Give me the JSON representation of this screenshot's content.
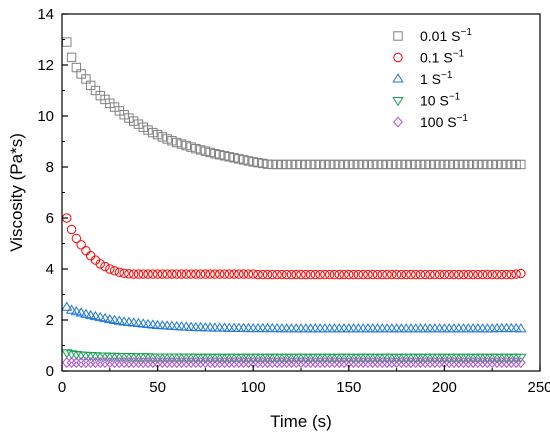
{
  "chart_data": {
    "type": "scatter",
    "xlabel": "Time (s)",
    "ylabel": "Viscosity (Pa*s)",
    "xlim": [
      0,
      250
    ],
    "ylim": [
      0,
      14
    ],
    "x_ticks": [
      0,
      50,
      100,
      150,
      200,
      250
    ],
    "y_ticks": [
      0,
      2,
      4,
      6,
      8,
      10,
      12,
      14
    ],
    "grid": false,
    "legend_placement": "top-right",
    "x_start": 2.5,
    "x_step": 2.5,
    "x_end": 240,
    "series": [
      {
        "name": "0.01 S",
        "superscript": "−1",
        "marker": "square",
        "color": "#808080",
        "values": [
          12.9,
          12.3,
          11.9,
          11.65,
          11.45,
          11.2,
          11.0,
          10.8,
          10.65,
          10.5,
          10.35,
          10.2,
          10.05,
          9.92,
          9.8,
          9.68,
          9.56,
          9.45,
          9.35,
          9.27,
          9.18,
          9.1,
          9.03,
          8.96,
          8.9,
          8.84,
          8.78,
          8.72,
          8.67,
          8.62,
          8.57,
          8.52,
          8.48,
          8.44,
          8.4,
          8.36,
          8.32,
          8.28,
          8.24,
          8.2,
          8.17,
          8.14,
          8.11,
          8.1,
          8.1,
          8.1,
          8.1,
          8.1,
          8.1,
          8.1,
          8.1,
          8.1,
          8.1,
          8.1,
          8.1,
          8.1,
          8.1,
          8.1,
          8.1,
          8.1,
          8.1,
          8.1,
          8.1,
          8.1,
          8.1,
          8.1,
          8.1,
          8.1,
          8.1,
          8.1,
          8.1,
          8.1,
          8.1,
          8.1,
          8.1,
          8.1,
          8.1,
          8.1,
          8.1,
          8.1,
          8.1,
          8.1,
          8.1,
          8.1,
          8.1,
          8.1,
          8.1,
          8.1,
          8.1,
          8.1,
          8.1,
          8.1,
          8.1,
          8.1,
          8.1,
          8.1
        ]
      },
      {
        "name": "0.1 S",
        "superscript": "−1",
        "marker": "circle",
        "color": "#ff0000",
        "values": [
          6.0,
          5.55,
          5.2,
          4.95,
          4.72,
          4.52,
          4.35,
          4.2,
          4.1,
          4.0,
          3.93,
          3.87,
          3.83,
          3.81,
          3.8,
          3.8,
          3.8,
          3.8,
          3.8,
          3.8,
          3.8,
          3.8,
          3.8,
          3.8,
          3.8,
          3.8,
          3.8,
          3.8,
          3.8,
          3.8,
          3.8,
          3.8,
          3.8,
          3.8,
          3.8,
          3.8,
          3.8,
          3.8,
          3.8,
          3.8,
          3.78,
          3.78,
          3.78,
          3.78,
          3.78,
          3.78,
          3.78,
          3.78,
          3.78,
          3.78,
          3.78,
          3.78,
          3.78,
          3.78,
          3.78,
          3.78,
          3.78,
          3.78,
          3.78,
          3.78,
          3.78,
          3.78,
          3.78,
          3.78,
          3.78,
          3.78,
          3.78,
          3.78,
          3.78,
          3.78,
          3.78,
          3.78,
          3.78,
          3.78,
          3.78,
          3.78,
          3.78,
          3.78,
          3.78,
          3.78,
          3.78,
          3.78,
          3.78,
          3.78,
          3.78,
          3.78,
          3.78,
          3.78,
          3.78,
          3.78,
          3.78,
          3.78,
          3.78,
          3.78,
          3.8,
          3.82
        ]
      },
      {
        "name": "1 S",
        "superscript": "−1",
        "marker": "triangle-up",
        "color": "#1f77d4",
        "values": [
          2.5,
          2.38,
          2.32,
          2.27,
          2.22,
          2.17,
          2.13,
          2.09,
          2.05,
          2.01,
          1.98,
          1.95,
          1.92,
          1.9,
          1.88,
          1.86,
          1.84,
          1.82,
          1.8,
          1.78,
          1.77,
          1.76,
          1.75,
          1.74,
          1.73,
          1.72,
          1.71,
          1.7,
          1.7,
          1.69,
          1.69,
          1.68,
          1.68,
          1.68,
          1.67,
          1.67,
          1.67,
          1.67,
          1.66,
          1.66,
          1.66,
          1.66,
          1.66,
          1.66,
          1.66,
          1.65,
          1.65,
          1.65,
          1.65,
          1.65,
          1.65,
          1.65,
          1.65,
          1.65,
          1.65,
          1.65,
          1.65,
          1.65,
          1.65,
          1.65,
          1.65,
          1.65,
          1.65,
          1.65,
          1.65,
          1.65,
          1.65,
          1.65,
          1.65,
          1.65,
          1.65,
          1.65,
          1.65,
          1.65,
          1.65,
          1.65,
          1.65,
          1.65,
          1.65,
          1.65,
          1.65,
          1.65,
          1.65,
          1.65,
          1.65,
          1.65,
          1.65,
          1.65,
          1.65,
          1.65,
          1.66,
          1.66,
          1.66,
          1.66,
          1.66,
          1.65
        ]
      },
      {
        "name": "10 S",
        "superscript": "−1",
        "marker": "triangle-down",
        "color": "#1a9e50",
        "values": [
          0.72,
          0.68,
          0.65,
          0.63,
          0.62,
          0.61,
          0.6,
          0.59,
          0.59,
          0.58,
          0.58,
          0.57,
          0.57,
          0.57,
          0.56,
          0.56,
          0.56,
          0.56,
          0.55,
          0.55,
          0.55,
          0.55,
          0.55,
          0.55,
          0.55,
          0.55,
          0.55,
          0.54,
          0.54,
          0.54,
          0.54,
          0.54,
          0.54,
          0.54,
          0.54,
          0.54,
          0.54,
          0.54,
          0.54,
          0.54,
          0.54,
          0.54,
          0.54,
          0.54,
          0.54,
          0.54,
          0.54,
          0.54,
          0.54,
          0.54,
          0.54,
          0.54,
          0.54,
          0.54,
          0.54,
          0.54,
          0.54,
          0.54,
          0.54,
          0.54,
          0.54,
          0.54,
          0.54,
          0.54,
          0.54,
          0.54,
          0.54,
          0.54,
          0.54,
          0.54,
          0.54,
          0.54,
          0.54,
          0.54,
          0.54,
          0.54,
          0.54,
          0.54,
          0.54,
          0.54,
          0.54,
          0.54,
          0.54,
          0.54,
          0.54,
          0.54,
          0.54,
          0.54,
          0.54,
          0.54,
          0.54,
          0.54,
          0.54,
          0.54,
          0.54,
          0.54
        ]
      },
      {
        "name": "100 S",
        "superscript": "−1",
        "marker": "diamond",
        "color": "#b04fd8",
        "values": [
          0.33,
          0.33,
          0.33,
          0.33,
          0.33,
          0.33,
          0.33,
          0.33,
          0.33,
          0.33,
          0.33,
          0.33,
          0.33,
          0.33,
          0.33,
          0.33,
          0.33,
          0.33,
          0.33,
          0.33,
          0.33,
          0.33,
          0.33,
          0.33,
          0.33,
          0.33,
          0.33,
          0.33,
          0.33,
          0.33,
          0.33,
          0.33,
          0.33,
          0.33,
          0.33,
          0.33,
          0.33,
          0.33,
          0.33,
          0.33,
          0.33,
          0.33,
          0.33,
          0.33,
          0.33,
          0.33,
          0.33,
          0.33,
          0.33,
          0.33,
          0.33,
          0.33,
          0.33,
          0.33,
          0.33,
          0.33,
          0.33,
          0.33,
          0.33,
          0.33,
          0.33,
          0.33,
          0.33,
          0.33,
          0.33,
          0.33,
          0.33,
          0.33,
          0.33,
          0.33,
          0.33,
          0.33,
          0.33,
          0.33,
          0.33,
          0.33,
          0.33,
          0.33,
          0.33,
          0.33,
          0.33,
          0.33,
          0.33,
          0.33,
          0.33,
          0.33,
          0.33,
          0.33,
          0.33,
          0.33,
          0.33,
          0.33,
          0.33,
          0.33,
          0.33,
          0.33
        ]
      }
    ]
  }
}
